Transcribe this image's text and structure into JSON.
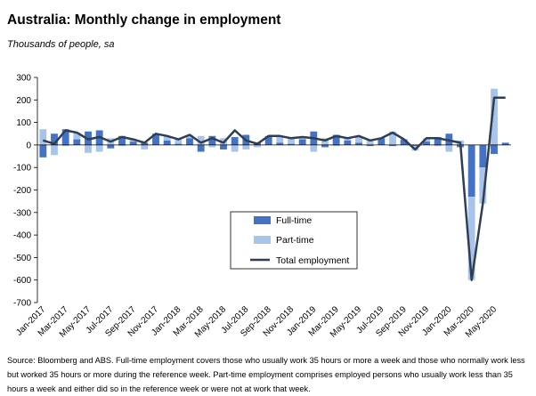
{
  "header": {
    "title": "Australia: Monthly change in employment",
    "subtitle": "Thousands of people, sa"
  },
  "footer": {
    "note": "Source: Bloomberg and ABS.  Full-time employment covers those who usually work 35 hours or more a week and those who normally work less but worked 35 hours or more during the reference week.  Part-time employment comprises employed persons who usually work less than 35 hours a week and either did so in the reference week or were not at work that week."
  },
  "colors": {
    "full_time": "#4472C4",
    "part_time": "#A9C4EB",
    "total": "#2F3E52",
    "zero_line": "#000000"
  },
  "chart_data": {
    "type": "bar",
    "xlabel": "",
    "ylabel": "",
    "ylim": [
      -700,
      300
    ],
    "yticks": [
      -700,
      -600,
      -500,
      -400,
      -300,
      -200,
      -100,
      0,
      100,
      200,
      300
    ],
    "grid": false,
    "legend_position": "center-right",
    "categories": [
      "Jan-2017",
      "Feb-2017",
      "Mar-2017",
      "Apr-2017",
      "May-2017",
      "Jun-2017",
      "Jul-2017",
      "Aug-2017",
      "Sep-2017",
      "Oct-2017",
      "Nov-2017",
      "Dec-2017",
      "Jan-2018",
      "Feb-2018",
      "Mar-2018",
      "Apr-2018",
      "May-2018",
      "Jun-2018",
      "Jul-2018",
      "Aug-2018",
      "Sep-2018",
      "Oct-2018",
      "Nov-2018",
      "Dec-2018",
      "Jan-2019",
      "Feb-2019",
      "Mar-2019",
      "Apr-2019",
      "May-2019",
      "Jun-2019",
      "Jul-2019",
      "Aug-2019",
      "Sep-2019",
      "Oct-2019",
      "Nov-2019",
      "Dec-2019",
      "Jan-2020",
      "Feb-2020",
      "Mar-2020",
      "Apr-2020",
      "May-2020",
      "Jun-2020"
    ],
    "tick_labels": [
      "Jan-2017",
      "Mar-2017",
      "May-2017",
      "Jul-2017",
      "Sep-2017",
      "Nov-2017",
      "Jan-2018",
      "Mar-2018",
      "May-2018",
      "Jul-2018",
      "Sep-2018",
      "Nov-2018",
      "Jan-2019",
      "Mar-2019",
      "May-2019",
      "Jul-2019",
      "Sep-2019",
      "Nov-2019",
      "Jan-2020",
      "Mar-2020",
      "May-2020"
    ],
    "series": [
      {
        "name": "Full-time",
        "kind": "stacked-bar",
        "values": [
          -55,
          50,
          70,
          25,
          60,
          65,
          -15,
          40,
          15,
          10,
          50,
          20,
          5,
          30,
          -30,
          40,
          -20,
          35,
          45,
          10,
          40,
          10,
          5,
          25,
          60,
          -10,
          45,
          20,
          10,
          -5,
          30,
          -5,
          25,
          -5,
          15,
          35,
          50,
          -10,
          -230,
          -100,
          -40,
          10
        ]
      },
      {
        "name": "Part-time",
        "kind": "stacked-bar",
        "values": [
          70,
          -45,
          -5,
          30,
          -35,
          -30,
          30,
          -5,
          10,
          -20,
          0,
          20,
          20,
          15,
          40,
          -10,
          30,
          -30,
          -20,
          -10,
          0,
          30,
          25,
          10,
          -30,
          30,
          -5,
          10,
          30,
          25,
          0,
          60,
          0,
          -20,
          15,
          -5,
          -30,
          20,
          -370,
          -160,
          250,
          0
        ]
      },
      {
        "name": "Total employment",
        "kind": "line",
        "values": [
          20,
          5,
          65,
          55,
          25,
          35,
          15,
          35,
          25,
          10,
          50,
          40,
          25,
          45,
          10,
          30,
          10,
          65,
          20,
          5,
          40,
          40,
          30,
          35,
          30,
          20,
          40,
          30,
          40,
          20,
          30,
          55,
          25,
          -20,
          30,
          30,
          20,
          10,
          -600,
          -260,
          210,
          210
        ]
      }
    ]
  }
}
